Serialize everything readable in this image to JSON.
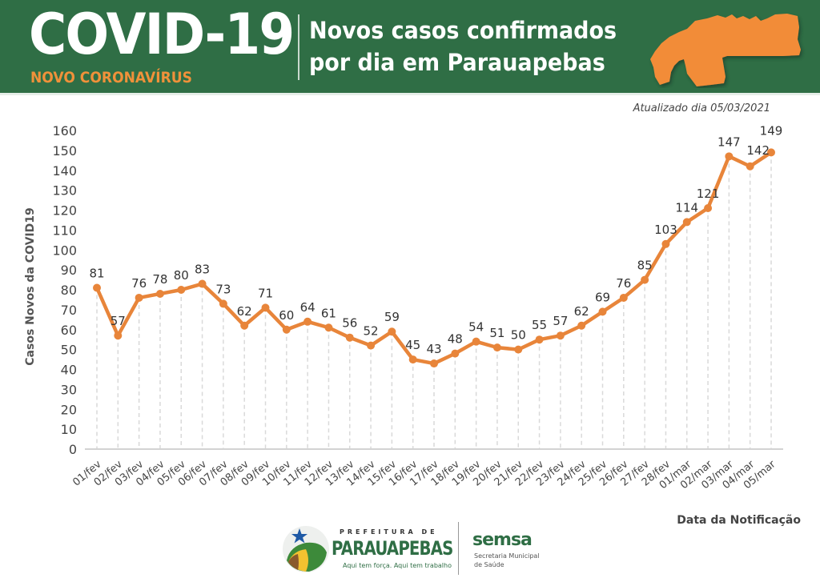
{
  "header": {
    "brand_title": "COVID-19",
    "brand_subtitle": "NOVO CORONAVÍRUS",
    "title_line1": "Novos casos confirmados",
    "title_line2": "por dia em Parauapebas",
    "map_icon": "para-state-map-icon",
    "updated": "Atualizado dia 05/03/2021"
  },
  "colors": {
    "header_bg": "#2f6e45",
    "accent_orange": "#f0913a",
    "line": "#e8853a",
    "grid": "#d9d9d9",
    "axis": "#d0d0d0"
  },
  "chart_data": {
    "type": "line",
    "title": "Novos casos confirmados por dia em Parauapebas",
    "xlabel": "Data da Notificação",
    "ylabel": "Casos Novos da COVID19",
    "ylim": [
      0,
      160
    ],
    "yticks": [
      0,
      10,
      20,
      30,
      40,
      50,
      60,
      70,
      80,
      90,
      100,
      110,
      120,
      130,
      140,
      150,
      160
    ],
    "grid": "vertical-dashed",
    "legend": "none",
    "categories": [
      "01/fev",
      "02/fev",
      "03/fev",
      "04/fev",
      "05/fev",
      "06/fev",
      "07/fev",
      "08/fev",
      "09/fev",
      "10/fev",
      "11/fev",
      "12/fev",
      "13/fev",
      "14/fev",
      "15/fev",
      "16/fev",
      "17/fev",
      "18/fev",
      "19/fev",
      "20/fev",
      "21/fev",
      "22/fev",
      "23/fev",
      "24/fev",
      "25/fev",
      "26/fev",
      "27/fev",
      "28/fev",
      "01/mar",
      "02/mar",
      "03/mar",
      "04/mar",
      "05/mar"
    ],
    "series": [
      {
        "name": "Casos Novos",
        "values": [
          81,
          57,
          76,
          78,
          80,
          83,
          73,
          62,
          71,
          60,
          64,
          61,
          56,
          52,
          59,
          45,
          43,
          48,
          54,
          51,
          50,
          55,
          57,
          62,
          69,
          76,
          85,
          103,
          114,
          121,
          147,
          142,
          149
        ]
      }
    ]
  },
  "footer": {
    "pref_small": "PREFEITURA DE",
    "pref_big": "PARAUAPEBAS",
    "pref_slogan": "Aqui tem força. Aqui tem trabalho",
    "semsa_name": "semsa",
    "semsa_sub1": "Secretaria Municipal",
    "semsa_sub2": "de Saúde"
  }
}
